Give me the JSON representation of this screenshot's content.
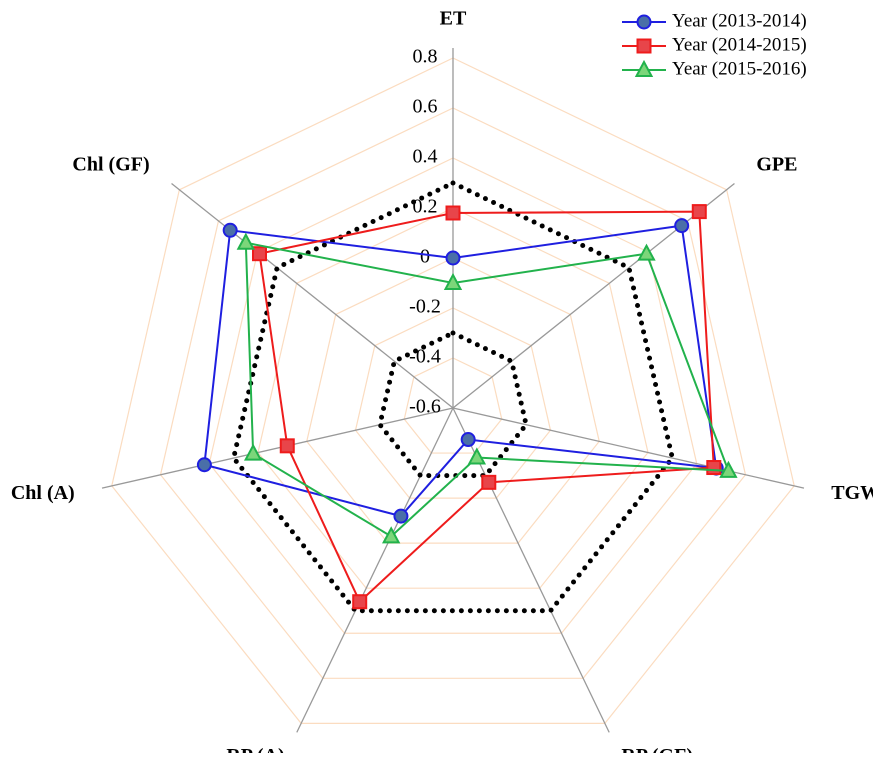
{
  "chart_data": {
    "type": "radar",
    "categories": [
      "ET",
      "GPE",
      "TGW",
      "RP (GF)",
      "RP (A)",
      "Chl (A)",
      "Chl (GF)"
    ],
    "ylim": [
      -0.6,
      0.8
    ],
    "yticks": [
      -0.6,
      -0.4,
      -0.2,
      0,
      0.2,
      0.4,
      0.6,
      0.8
    ],
    "grid": true,
    "grid_color": "#fbdcc0",
    "reference_rings": [
      0.3,
      -0.3
    ],
    "legend": "top-right",
    "series": [
      {
        "name": "Year (2013-2014)",
        "color": "#1f1fe0",
        "marker": "circle",
        "marker_color": "#4a6fa8",
        "values": [
          0,
          0.57,
          0.48,
          -0.46,
          -0.12,
          0.42,
          0.54
        ]
      },
      {
        "name": "Year (2014-2015)",
        "color": "#ee1c1c",
        "marker": "square",
        "marker_color": "#e8454a",
        "values": [
          0.18,
          0.66,
          0.47,
          -0.27,
          0.26,
          0.08,
          0.39
        ]
      },
      {
        "name": "Year (2015-2016)",
        "color": "#22b24c",
        "marker": "triangle",
        "marker_color": "#7cd67a",
        "values": [
          -0.1,
          0.39,
          0.53,
          -0.38,
          -0.03,
          0.22,
          0.46
        ]
      }
    ]
  }
}
